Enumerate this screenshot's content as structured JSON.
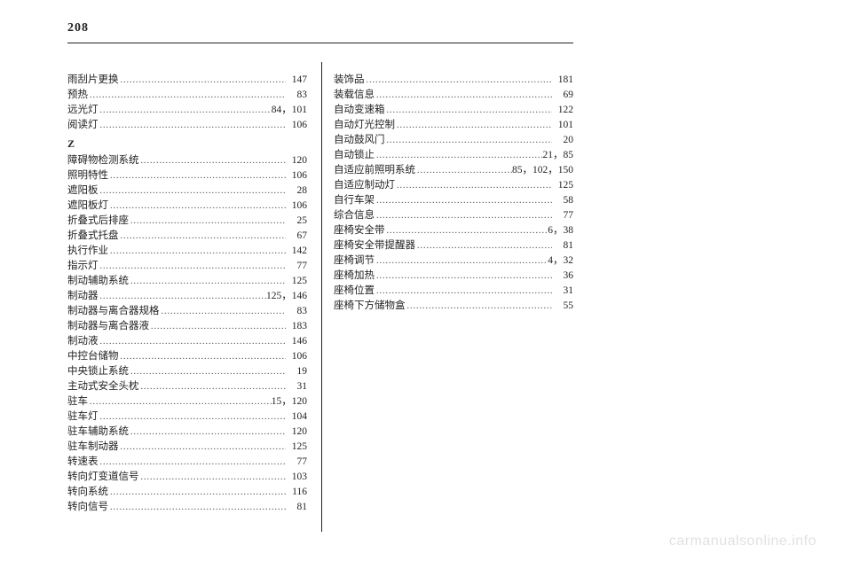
{
  "page_number": "208",
  "watermark": "carmanualsonline.info",
  "columns": {
    "left": [
      {
        "type": "entry",
        "label": "雨刮片更换",
        "pages": "147"
      },
      {
        "type": "entry",
        "label": "预热",
        "pages": "83"
      },
      {
        "type": "entry",
        "label": "远光灯",
        "pages": "84，101"
      },
      {
        "type": "entry",
        "label": "阅读灯",
        "pages": "106"
      },
      {
        "type": "letter",
        "label": "Z"
      },
      {
        "type": "entry",
        "label": "障碍物检测系统",
        "pages": "120"
      },
      {
        "type": "entry",
        "label": "照明特性",
        "pages": "106"
      },
      {
        "type": "entry",
        "label": "遮阳板",
        "pages": "28"
      },
      {
        "type": "entry",
        "label": "遮阳板灯",
        "pages": "106"
      },
      {
        "type": "entry",
        "label": "折叠式后排座",
        "pages": "25"
      },
      {
        "type": "entry",
        "label": "折叠式托盘",
        "pages": "67"
      },
      {
        "type": "entry",
        "label": "执行作业",
        "pages": "142"
      },
      {
        "type": "entry",
        "label": "指示灯",
        "pages": "77"
      },
      {
        "type": "entry",
        "label": "制动辅助系统",
        "pages": "125"
      },
      {
        "type": "entry",
        "label": "制动器",
        "pages": "125，146"
      },
      {
        "type": "entry",
        "label": "制动器与离合器规格",
        "pages": "83"
      },
      {
        "type": "entry",
        "label": "制动器与离合器液",
        "pages": "183"
      },
      {
        "type": "entry",
        "label": "制动液",
        "pages": "146"
      },
      {
        "type": "entry",
        "label": "中控台储物",
        "pages": "106"
      },
      {
        "type": "entry",
        "label": "中央锁止系统",
        "pages": "19"
      },
      {
        "type": "entry",
        "label": "主动式安全头枕",
        "pages": "31"
      },
      {
        "type": "entry",
        "label": "驻车",
        "pages": "15，120"
      },
      {
        "type": "entry",
        "label": "驻车灯",
        "pages": "104"
      },
      {
        "type": "entry",
        "label": "驻车辅助系统",
        "pages": "120"
      },
      {
        "type": "entry",
        "label": "驻车制动器",
        "pages": "125"
      },
      {
        "type": "entry",
        "label": "转速表",
        "pages": "77"
      },
      {
        "type": "entry",
        "label": "转向灯变道信号",
        "pages": "103"
      },
      {
        "type": "entry",
        "label": "转向系统",
        "pages": "116"
      },
      {
        "type": "entry",
        "label": "转向信号",
        "pages": "81"
      }
    ],
    "right": [
      {
        "type": "entry",
        "label": "装饰品",
        "pages": "181"
      },
      {
        "type": "entry",
        "label": "装载信息",
        "pages": "69"
      },
      {
        "type": "entry",
        "label": "自动变速箱",
        "pages": "122"
      },
      {
        "type": "entry",
        "label": "自动灯光控制",
        "pages": "101"
      },
      {
        "type": "entry",
        "label": "自动鼓风门",
        "pages": "20"
      },
      {
        "type": "entry",
        "label": "自动锁止",
        "pages": "21，85"
      },
      {
        "type": "entry",
        "label": "自适应前照明系统",
        "pages": "85，102，150"
      },
      {
        "type": "entry",
        "label": "自适应制动灯",
        "pages": "125"
      },
      {
        "type": "entry",
        "label": "自行车架",
        "pages": "58"
      },
      {
        "type": "entry",
        "label": "综合信息",
        "pages": "77"
      },
      {
        "type": "entry",
        "label": "座椅安全带",
        "pages": "6，38"
      },
      {
        "type": "entry",
        "label": "座椅安全带提醒器",
        "pages": "81"
      },
      {
        "type": "entry",
        "label": "座椅调节",
        "pages": "4，32"
      },
      {
        "type": "entry",
        "label": "座椅加热",
        "pages": "36"
      },
      {
        "type": "entry",
        "label": "座椅位置",
        "pages": "31"
      },
      {
        "type": "entry",
        "label": "座椅下方储物盒",
        "pages": "55"
      }
    ]
  }
}
